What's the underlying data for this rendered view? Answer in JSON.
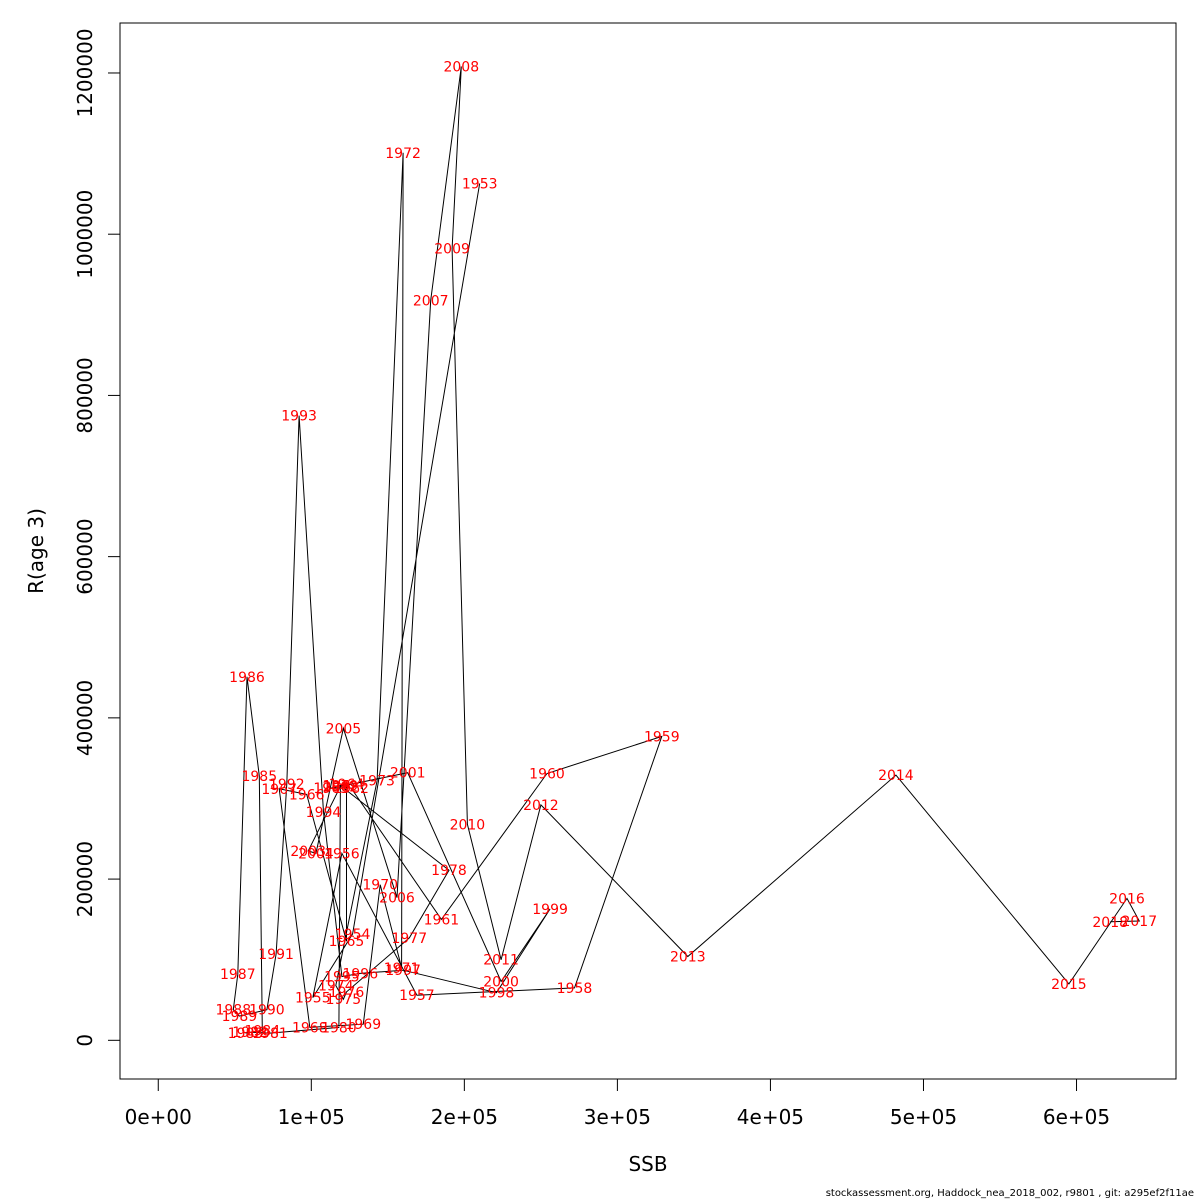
{
  "chart_data": {
    "type": "line",
    "title": "",
    "xlabel": "SSB",
    "ylabel": "R(age 3)",
    "xlim": [
      -25000,
      665000
    ],
    "ylim": [
      -48000,
      1262000
    ],
    "x_ticks": [
      0,
      100000,
      200000,
      300000,
      400000,
      500000,
      600000
    ],
    "x_tick_labels": [
      "0e+00",
      "1e+05",
      "2e+05",
      "3e+05",
      "4e+05",
      "5e+05",
      "6e+05"
    ],
    "y_ticks": [
      0,
      200000,
      400000,
      600000,
      800000,
      1000000,
      1200000
    ],
    "y_tick_labels": [
      "0",
      "200000",
      "400000",
      "600000",
      "800000",
      "1000000",
      "1200000"
    ],
    "grid": false,
    "legend": "none",
    "line_color": "#000000",
    "label_color": "#ff0000",
    "points": [
      {
        "year": "1953",
        "ssb": 210000,
        "r": 1063000
      },
      {
        "year": "1954",
        "ssb": 127000,
        "r": 132000
      },
      {
        "year": "1955",
        "ssb": 101000,
        "r": 53000
      },
      {
        "year": "1956",
        "ssb": 120000,
        "r": 232000
      },
      {
        "year": "1957",
        "ssb": 169000,
        "r": 56000
      },
      {
        "year": "1958",
        "ssb": 272000,
        "r": 65000
      },
      {
        "year": "1959",
        "ssb": 329000,
        "r": 377000
      },
      {
        "year": "1960",
        "ssb": 254000,
        "r": 331000
      },
      {
        "year": "1961",
        "ssb": 185000,
        "r": 150000
      },
      {
        "year": "1962",
        "ssb": 126000,
        "r": 313000
      },
      {
        "year": "1963",
        "ssb": 113000,
        "r": 313000
      },
      {
        "year": "1964",
        "ssb": 123000,
        "r": 318000
      },
      {
        "year": "1965",
        "ssb": 123000,
        "r": 123000
      },
      {
        "year": "1966",
        "ssb": 97000,
        "r": 305000
      },
      {
        "year": "1967",
        "ssb": 79000,
        "r": 312000
      },
      {
        "year": "1968",
        "ssb": 99000,
        "r": 16000
      },
      {
        "year": "1969",
        "ssb": 134000,
        "r": 20000
      },
      {
        "year": "1970",
        "ssb": 145000,
        "r": 193000
      },
      {
        "year": "1971",
        "ssb": 159000,
        "r": 90000
      },
      {
        "year": "1972",
        "ssb": 160000,
        "r": 1101000
      },
      {
        "year": "1973",
        "ssb": 143000,
        "r": 322000
      },
      {
        "year": "1974",
        "ssb": 116000,
        "r": 68000
      },
      {
        "year": "1975",
        "ssb": 121000,
        "r": 51000
      },
      {
        "year": "1976",
        "ssb": 123000,
        "r": 60000
      },
      {
        "year": "1977",
        "ssb": 164000,
        "r": 127000
      },
      {
        "year": "1978",
        "ssb": 190000,
        "r": 211000
      },
      {
        "year": "1979",
        "ssb": 119000,
        "r": 316000
      },
      {
        "year": "1980",
        "ssb": 118000,
        "r": 16000
      },
      {
        "year": "1981",
        "ssb": 73000,
        "r": 9000
      },
      {
        "year": "1982",
        "ssb": 60000,
        "r": 10000
      },
      {
        "year": "1983",
        "ssb": 57000,
        "r": 9000
      },
      {
        "year": "1984",
        "ssb": 68000,
        "r": 12000
      },
      {
        "year": "1985",
        "ssb": 66000,
        "r": 328000
      },
      {
        "year": "1986",
        "ssb": 58000,
        "r": 451000
      },
      {
        "year": "1987",
        "ssb": 52000,
        "r": 82000
      },
      {
        "year": "1988",
        "ssb": 49000,
        "r": 38000
      },
      {
        "year": "1989",
        "ssb": 53000,
        "r": 30000
      },
      {
        "year": "1990",
        "ssb": 71000,
        "r": 38000
      },
      {
        "year": "1991",
        "ssb": 77000,
        "r": 107000
      },
      {
        "year": "1992",
        "ssb": 84000,
        "r": 318000
      },
      {
        "year": "1993",
        "ssb": 92000,
        "r": 775000
      },
      {
        "year": "1994",
        "ssb": 108000,
        "r": 283000
      },
      {
        "year": "1995",
        "ssb": 120000,
        "r": 79000
      },
      {
        "year": "1996",
        "ssb": 132000,
        "r": 83000
      },
      {
        "year": "1997",
        "ssb": 160000,
        "r": 87000
      },
      {
        "year": "1998",
        "ssb": 221000,
        "r": 59000
      },
      {
        "year": "1999",
        "ssb": 256000,
        "r": 163000
      },
      {
        "year": "2000",
        "ssb": 224000,
        "r": 73000
      },
      {
        "year": "2001",
        "ssb": 163000,
        "r": 332000
      },
      {
        "year": "2002",
        "ssb": 119000,
        "r": 315000
      },
      {
        "year": "2003",
        "ssb": 98000,
        "r": 235000
      },
      {
        "year": "2004",
        "ssb": 103000,
        "r": 232000
      },
      {
        "year": "2005",
        "ssb": 121000,
        "r": 387000
      },
      {
        "year": "2006",
        "ssb": 156000,
        "r": 177000
      },
      {
        "year": "2007",
        "ssb": 178000,
        "r": 918000
      },
      {
        "year": "2008",
        "ssb": 198000,
        "r": 1208000
      },
      {
        "year": "2009",
        "ssb": 192000,
        "r": 982000
      },
      {
        "year": "2010",
        "ssb": 202000,
        "r": 268000
      },
      {
        "year": "2011",
        "ssb": 224000,
        "r": 100000
      },
      {
        "year": "2012",
        "ssb": 250000,
        "r": 292000
      },
      {
        "year": "2013",
        "ssb": 346000,
        "r": 104000
      },
      {
        "year": "2014",
        "ssb": 482000,
        "r": 329000
      },
      {
        "year": "2015",
        "ssb": 595000,
        "r": 70000
      },
      {
        "year": "2016",
        "ssb": 633000,
        "r": 176000
      },
      {
        "year": "2017",
        "ssb": 641000,
        "r": 148000
      },
      {
        "year": "2018",
        "ssb": 622000,
        "r": 147000
      }
    ]
  },
  "footer": {
    "text": "stockassessment.org, Haddock_nea_2018_002, r9801 , git: a295ef2f11ae"
  }
}
